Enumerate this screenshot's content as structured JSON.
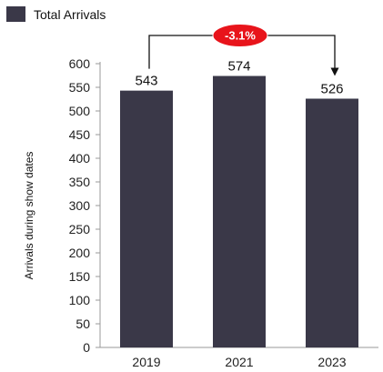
{
  "chart_data": {
    "type": "bar",
    "categories": [
      "2019",
      "2021",
      "2023"
    ],
    "series": [
      {
        "name": "Total Arrivals",
        "values": [
          543,
          574,
          526
        ]
      }
    ],
    "data_labels": [
      "543",
      "574",
      "526"
    ],
    "ylabel": "Arrivals during show dates",
    "xlabel": "",
    "ylim": [
      0,
      600
    ],
    "yticks": [
      0,
      50,
      100,
      150,
      200,
      250,
      300,
      350,
      400,
      450,
      500,
      550,
      600
    ],
    "grid": false,
    "legend_position": "top-left",
    "annotation": {
      "text": "-3.1%",
      "from": "2019",
      "to": "2023"
    },
    "colors": {
      "bar": "#3a3848",
      "badge": "#e8141b",
      "axis": "#999999"
    }
  }
}
